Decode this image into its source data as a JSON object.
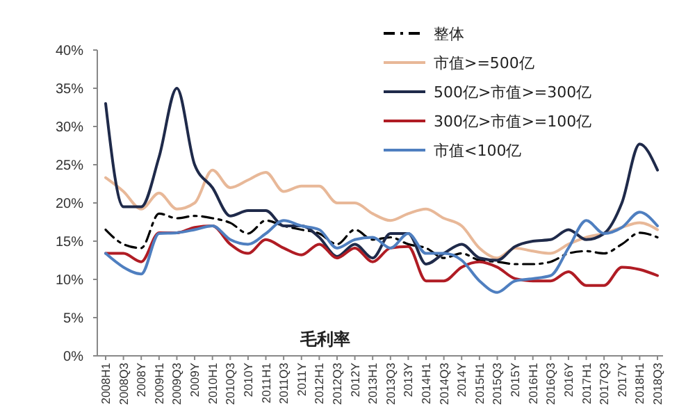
{
  "chart_data": {
    "type": "line",
    "categories": [
      "2008H1",
      "2008Q3",
      "2008Y",
      "2009H1",
      "2009Q3",
      "2009Y",
      "2010H1",
      "2010Q3",
      "2010Y",
      "2011H1",
      "2011Q3",
      "2011Y",
      "2012H1",
      "2012Q3",
      "2012Y",
      "2013H1",
      "2013Q3",
      "2013Y",
      "2014H1",
      "2014Q3",
      "2014Y",
      "2015H1",
      "2015Q3",
      "2015Y",
      "2016H1",
      "2016Q3",
      "2016Y",
      "2017H1",
      "2017Q3",
      "2017Y",
      "2018H1",
      "2018Q3"
    ],
    "ylim": [
      0,
      40
    ],
    "yticks": [
      {
        "value": 0,
        "label": "0%"
      },
      {
        "value": 5,
        "label": "5%"
      },
      {
        "value": 10,
        "label": "10%"
      },
      {
        "value": 15,
        "label": "15%"
      },
      {
        "value": 20,
        "label": "20%"
      },
      {
        "value": 25,
        "label": "25%"
      },
      {
        "value": 30,
        "label": "30%"
      },
      {
        "value": 35,
        "label": "35%"
      },
      {
        "value": 40,
        "label": "40%"
      }
    ],
    "legend": "top right",
    "annotations": [
      "毛利率"
    ],
    "series": [
      {
        "name": "整体",
        "color": "#000000",
        "line_style": "dashed",
        "values": [
          16.5,
          14.6,
          14.1,
          18.6,
          18,
          18.3,
          18,
          17.4,
          16,
          17.7,
          17,
          16.5,
          16,
          14.6,
          16.5,
          15.2,
          15.5,
          14.6,
          14.1,
          12.8,
          13.4,
          12.5,
          12.3,
          12,
          12,
          12.3,
          13.4,
          13.7,
          13.4,
          14.6,
          16.1,
          15.5
        ]
      },
      {
        "name": "市值>=500亿",
        "color": "#e8b898",
        "values": [
          23.3,
          21.5,
          19.2,
          21.3,
          19.2,
          20,
          24.3,
          22,
          23,
          24,
          21.5,
          22.2,
          22.2,
          20,
          20,
          18.6,
          17.7,
          18.6,
          19.2,
          18,
          17,
          14.1,
          12.8,
          14.1,
          13.7,
          13.4,
          14.6,
          15.5,
          16,
          16.8,
          17.4,
          16.5
        ]
      },
      {
        "name": "500亿>市值>=300亿",
        "color": "#1f2a4a",
        "values": [
          33,
          19.5,
          19.5,
          26,
          35,
          25,
          22,
          18.3,
          19,
          19,
          17,
          17,
          15.5,
          13,
          14.6,
          12.8,
          16,
          16,
          12,
          13.4,
          14.6,
          12.8,
          12.5,
          14.3,
          15,
          15.2,
          16.5,
          15.2,
          16,
          20,
          27.7,
          24.3
        ]
      },
      {
        "name": "300亿>市值>=100亿",
        "color": "#b01c24",
        "values": [
          13.4,
          13.4,
          12.3,
          16.1,
          16.1,
          16.8,
          17,
          14.6,
          13.4,
          15.2,
          14.1,
          13.2,
          14.6,
          12.8,
          14.1,
          12.3,
          14.1,
          14.3,
          9.8,
          9.8,
          11.6,
          12.3,
          11.6,
          10.1,
          9.8,
          9.8,
          11,
          9.2,
          9.2,
          11.6,
          11.3,
          10.5
        ]
      },
      {
        "name": "市值<100亿",
        "color": "#4f7fc0",
        "values": [
          13.4,
          11.6,
          10.7,
          16,
          16.1,
          16.5,
          17,
          15.2,
          14.6,
          16,
          17.7,
          17,
          16.5,
          14.1,
          15.2,
          15.5,
          14.1,
          16,
          13.4,
          13.4,
          12.5,
          9.8,
          8.3,
          9.8,
          10.1,
          10.5,
          14.1,
          17.7,
          16,
          16.8,
          18.8,
          17
        ]
      }
    ]
  }
}
